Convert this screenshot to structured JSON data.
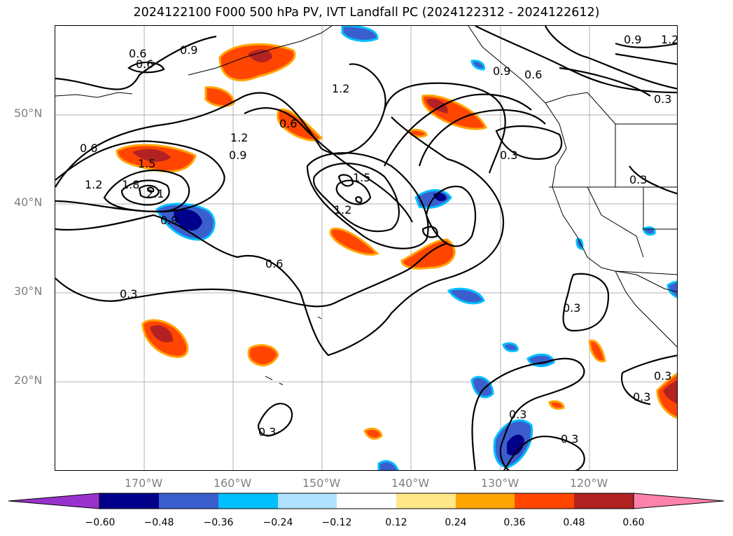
{
  "title": "2024122100 F000 500 hPa PV, IVT Landfall PC (2024122312 - 2024122612)",
  "lat_labels": [
    "50°N",
    "40°N",
    "30°N",
    "20°N"
  ],
  "lon_labels": [
    "170°W",
    "160°W",
    "150°W",
    "140°W",
    "130°W",
    "120°W"
  ],
  "colorbar": {
    "ticks": [
      "−0.60",
      "−0.48",
      "−0.36",
      "−0.24",
      "−0.12",
      "0.12",
      "0.24",
      "0.36",
      "0.48",
      "0.60"
    ],
    "colors": [
      "#9932CC",
      "#00008B",
      "#3A5FCD",
      "#00BFFF",
      "#B0E2FF",
      "#FFFFFF",
      "#FFE78A",
      "#FFA500",
      "#FF4500",
      "#B22222",
      "#FF82AB"
    ]
  },
  "contour_labels": [
    "0.9",
    "0.6",
    "0.6",
    "1.2",
    "0.9",
    "0.6",
    "0.3",
    "0.6",
    "1.2",
    "0.9",
    "1.5",
    "1.8",
    "2.1",
    "1.2",
    "0.6",
    "1.2",
    "0.9",
    "1.5",
    "1.2",
    "0.9",
    "0.3",
    "0.6",
    "0.3",
    "0.3",
    "0.3",
    "0.3",
    "0.3",
    "0.3",
    "0.3",
    "0.3"
  ]
}
